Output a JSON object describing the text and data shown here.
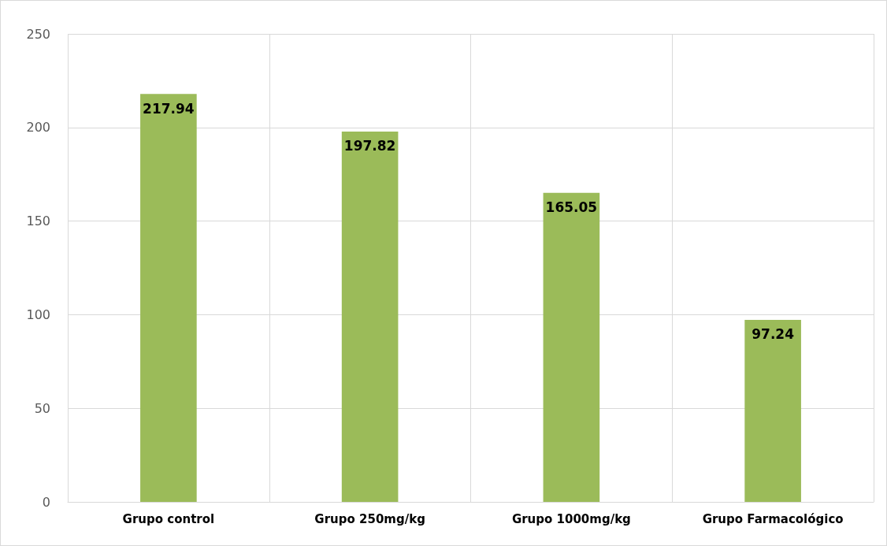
{
  "chart_data": {
    "type": "bar",
    "categories": [
      "Grupo control",
      "Grupo 250mg/kg",
      "Grupo 1000mg/kg",
      "Grupo Farmacológico"
    ],
    "values": [
      217.94,
      197.82,
      165.05,
      97.24
    ],
    "color": "#9bbb59",
    "ylim": [
      0,
      250
    ],
    "yticks": [
      0,
      50,
      100,
      150,
      200,
      250
    ],
    "grid": true,
    "data_labels": true
  }
}
